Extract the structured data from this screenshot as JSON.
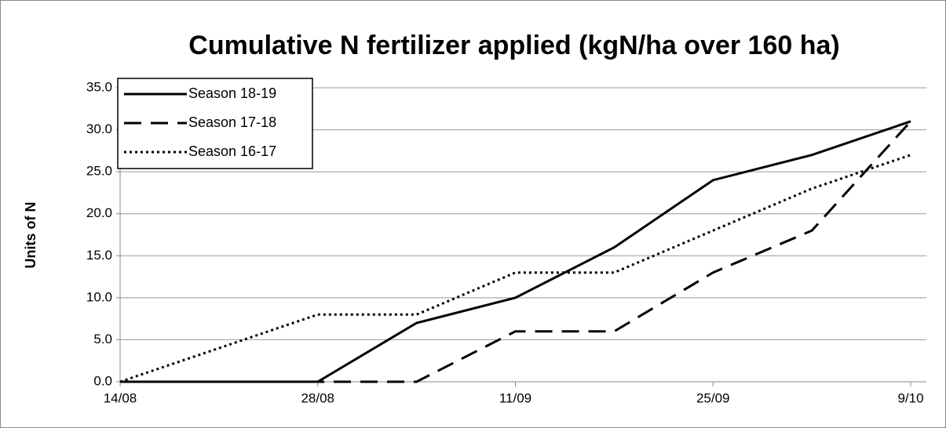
{
  "chart_data": {
    "type": "line",
    "title": "Cumulative N fertilizer applied (kgN/ha over 160 ha)",
    "y_label": "Units of N",
    "categories": [
      "14/08",
      null,
      "28/08",
      null,
      "11/09",
      null,
      "25/09",
      null,
      "9/10"
    ],
    "series": [
      {
        "name": "Season 18-19",
        "color": "#000000",
        "dash": "solid",
        "values": [
          0,
          0,
          0,
          7,
          10,
          16,
          24,
          27,
          31
        ]
      },
      {
        "name": "Season 17-18",
        "color": "#000000",
        "dash": "dashed",
        "values": [
          0,
          0,
          0,
          0,
          6,
          6,
          13,
          18,
          31
        ]
      },
      {
        "name": "Season 16-17",
        "color": "#000000",
        "dash": "dotted",
        "values": [
          0,
          4,
          8,
          8,
          13,
          13,
          18,
          23,
          27
        ]
      }
    ],
    "ylim": [
      0,
      35
    ],
    "yticks": [
      {
        "value": 0,
        "label": "0.0"
      },
      {
        "value": 5,
        "label": "5.0"
      },
      {
        "value": 10,
        "label": "10.0"
      },
      {
        "value": 15,
        "label": "15.0"
      },
      {
        "value": 20,
        "label": "20.0"
      },
      {
        "value": 25,
        "label": "25.0"
      },
      {
        "value": 30,
        "label": "30.0"
      },
      {
        "value": 35,
        "label": "35.0"
      }
    ],
    "grid": true,
    "legend": "upper left"
  }
}
